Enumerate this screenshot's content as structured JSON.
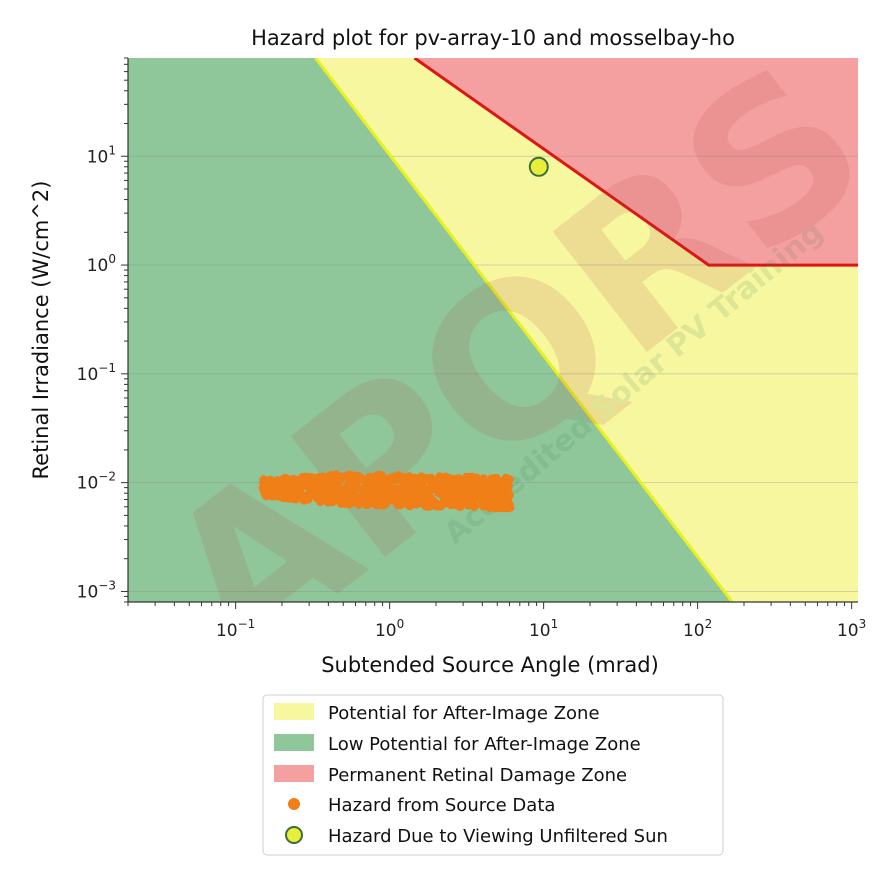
{
  "chart_data": {
    "type": "scatter",
    "title": "Hazard plot for pv-array-10 and mosselbay-ho",
    "xlabel": "Subtended Source Angle (mrad)",
    "ylabel": "Retinal Irradiance (W/cm^2)",
    "x_scale": "log",
    "y_scale": "log",
    "xlim": [
      0.02,
      1100
    ],
    "ylim": [
      0.0008,
      80
    ],
    "x_ticks": [
      {
        "base": "10",
        "exp": "−1",
        "value": 0.1
      },
      {
        "base": "10",
        "exp": "0",
        "value": 1
      },
      {
        "base": "10",
        "exp": "1",
        "value": 10
      },
      {
        "base": "10",
        "exp": "2",
        "value": 100
      },
      {
        "base": "10",
        "exp": "3",
        "value": 1000
      }
    ],
    "y_ticks": [
      {
        "base": "10",
        "exp": "−3",
        "value": 0.001
      },
      {
        "base": "10",
        "exp": "−2",
        "value": 0.01
      },
      {
        "base": "10",
        "exp": "−1",
        "value": 0.1
      },
      {
        "base": "10",
        "exp": "0",
        "value": 1
      },
      {
        "base": "10",
        "exp": "1",
        "value": 10
      }
    ],
    "grid": "horizontal major",
    "zones": [
      {
        "name": "Low Potential for After-Image Zone",
        "color": "#8fc79a",
        "line_color": "#e8f020",
        "boundary": [
          [
            0.33,
            80
          ],
          [
            168,
            0.0008
          ]
        ]
      },
      {
        "name": "Potential for After-Image Zone",
        "color": "#f7f7a0"
      },
      {
        "name": "Permanent Retinal Damage Zone",
        "color": "#f5a0a0",
        "line_color": "#dd1515",
        "boundary": [
          [
            1.45,
            80
          ],
          [
            118,
            1.0
          ],
          [
            1100,
            1.0
          ]
        ]
      }
    ],
    "series": [
      {
        "name": "Hazard from Source Data",
        "marker": "filled-circle",
        "color": "#f07f18",
        "x_range": [
          0.15,
          6.2
        ],
        "y_range": [
          0.0065,
          0.0125
        ]
      },
      {
        "name": "Hazard Due to Viewing Unfiltered Sun",
        "marker": "circle",
        "color": "#e8ef3a",
        "edge_color": "#3c6e3c",
        "x": [
          9.3
        ],
        "y": [
          8.0
        ]
      }
    ],
    "legend": {
      "position": "below",
      "entries": [
        "Potential for After-Image Zone",
        "Low Potential for After-Image Zone",
        "Permanent Retinal Damage Zone",
        "Hazard from Source Data",
        "Hazard Due to Viewing Unfiltered Sun"
      ]
    }
  },
  "colors": {
    "green_zone": "#8fc79a",
    "yellow_zone": "#f7f7a0",
    "red_zone": "#f5a0a0",
    "yellow_line": "#e8f020",
    "red_line": "#dd1515",
    "source_marker": "#f07f18",
    "sun_marker_fill": "#e8ef3a",
    "sun_marker_edge": "#3c6e3c"
  },
  "watermark": {
    "brand": "APQRS",
    "tagline": "Accredited Solar PV Training"
  }
}
